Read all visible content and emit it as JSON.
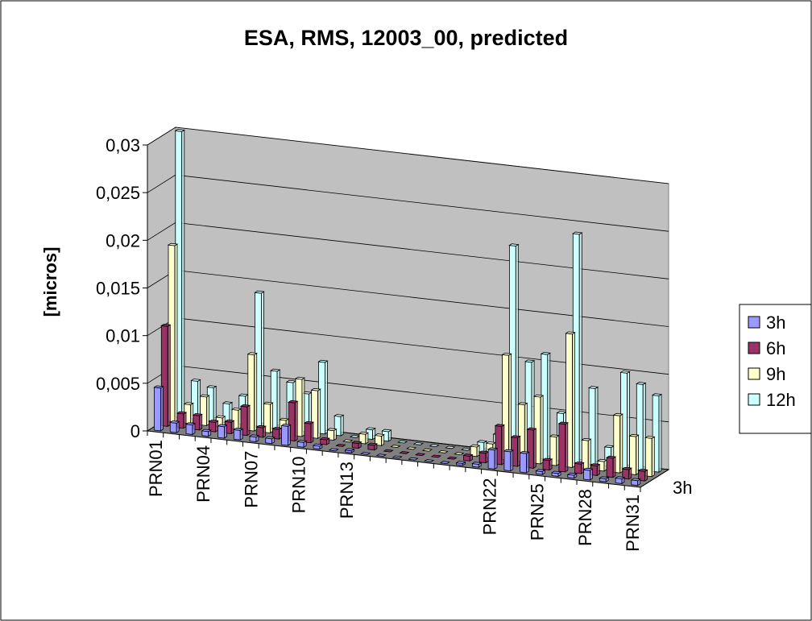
{
  "chart_data": {
    "type": "bar3d",
    "title": "ESA, RMS, 12003_00, predicted",
    "y_label": "[micros]",
    "categories": [
      "PRN01",
      null,
      null,
      "PRN04",
      null,
      null,
      "PRN07",
      null,
      null,
      "PRN10",
      null,
      null,
      "PRN13",
      null,
      null,
      null,
      null,
      null,
      null,
      null,
      null,
      "PRN22",
      null,
      null,
      "PRN25",
      null,
      null,
      "PRN28",
      null,
      null,
      "PRN31"
    ],
    "series": [
      {
        "name": "3h",
        "color": "#9999ff",
        "values": [
          0.0045,
          0.001,
          0.001,
          0.0005,
          0.0012,
          0.001,
          0.0005,
          0.0005,
          0.002,
          0.0005,
          0.0003,
          0,
          0.0002,
          0,
          0,
          0,
          0,
          0,
          0,
          0.0002,
          0.0003,
          0.002,
          0.002,
          0.002,
          0.0003,
          0.0003,
          0.0003,
          0.001,
          0.0003,
          0.0005,
          0.0005
        ]
      },
      {
        "name": "6h",
        "color": "#993366",
        "values": [
          0.0105,
          0.0015,
          0.0015,
          0.001,
          0.0012,
          0.003,
          0.001,
          0.001,
          0.004,
          0.002,
          0.0005,
          0,
          0.0005,
          0.0005,
          0,
          0,
          0,
          0,
          0,
          0.0005,
          0.001,
          0.004,
          0.003,
          0.004,
          0.001,
          0.005,
          0.001,
          0.001,
          0.002,
          0.001,
          0.001
        ]
      },
      {
        "name": "9h",
        "color": "#ffffcc",
        "values": [
          0.0185,
          0.002,
          0.003,
          0.001,
          0.002,
          0.008,
          0.003,
          0.0015,
          0.006,
          0.005,
          0.001,
          0,
          0.001,
          0.001,
          0,
          0,
          0,
          0,
          0,
          0.001,
          0.0015,
          0.011,
          0.006,
          0.007,
          0.003,
          0.014,
          0.003,
          0.001,
          0.006,
          0.004,
          0.004
        ]
      },
      {
        "name": "12h",
        "color": "#ccffff",
        "values": [
          0.03,
          0.004,
          0.0035,
          0.002,
          0.003,
          0.014,
          0.006,
          0.005,
          0.004,
          0.0075,
          0.002,
          0,
          0.001,
          0.001,
          0,
          0,
          0,
          0,
          0,
          0.001,
          0.002,
          0.022,
          0.01,
          0.011,
          0.005,
          0.024,
          0.008,
          0.002,
          0.01,
          0.009,
          0.008
        ]
      }
    ],
    "ylim": [
      0,
      0.03
    ],
    "yticks": [
      0,
      {
        "value": 0.005,
        "label": "0,005"
      },
      {
        "value": 0.01,
        "label": "0,01"
      },
      {
        "value": 0.015,
        "label": "0,015"
      },
      {
        "value": 0.02,
        "label": "0,02"
      },
      {
        "value": 0.025,
        "label": "0,025"
      },
      {
        "value": 0.03,
        "label": "0,03"
      }
    ],
    "grid": true,
    "legend": "right"
  }
}
